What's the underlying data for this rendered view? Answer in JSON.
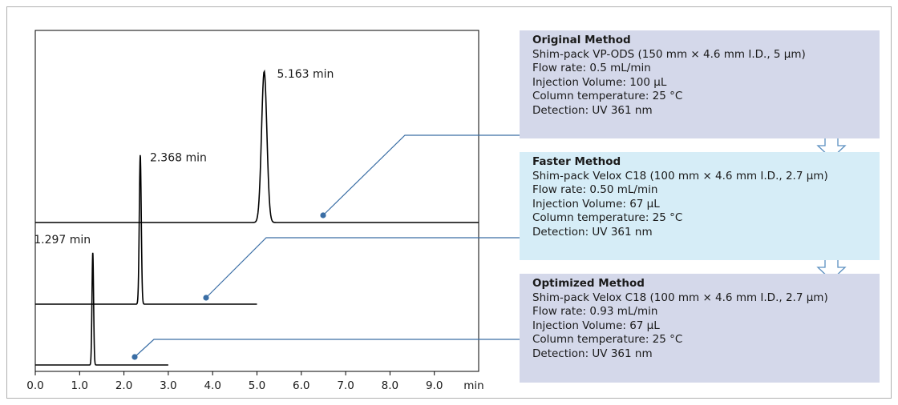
{
  "chart_data": {
    "type": "line",
    "xlabel": "min",
    "xlim": [
      0,
      10
    ],
    "xticks": [
      "0.0",
      "1.0",
      "2.0",
      "3.0",
      "4.0",
      "5.0",
      "6.0",
      "7.0",
      "8.0",
      "9.0"
    ],
    "series": [
      {
        "peak_label": "5.163 min",
        "peak_time": 5.163,
        "run_end": 10.0,
        "peak_height": 0.9,
        "peak_width": 0.06,
        "panel": "original"
      },
      {
        "peak_label": "2.368 min",
        "peak_time": 2.368,
        "run_end": 5.0,
        "peak_height": 0.88,
        "peak_width": 0.022,
        "panel": "faster"
      },
      {
        "peak_label": "1.297 min",
        "peak_time": 1.297,
        "run_end": 3.0,
        "peak_height": 0.85,
        "peak_width": 0.018,
        "panel": "optimized"
      }
    ]
  },
  "panels": {
    "original": {
      "title": "Original Method",
      "lines": [
        "Shim-pack VP-ODS (150 mm × 4.6 mm I.D., 5 µm)",
        "Flow rate: 0.5 mL/min",
        "Injection Volume: 100 µL",
        "Column temperature: 25 °C",
        "Detection: UV 361 nm"
      ]
    },
    "faster": {
      "title": "Faster Method",
      "lines": [
        "Shim-pack Velox C18 (100 mm × 4.6 mm I.D., 2.7 µm)",
        "Flow rate: 0.50 mL/min",
        "Injection Volume: 67 µL",
        "Column temperature: 25 °C",
        "Detection: UV 361 nm"
      ]
    },
    "optimized": {
      "title": "Optimized Method",
      "lines": [
        "Shim-pack Velox C18 (100 mm × 4.6 mm I.D., 2.7 µm)",
        "Flow rate: 0.93 mL/min",
        "Injection Volume: 67 µL",
        "Column temperature: 25 °C",
        "Detection: UV 361 nm"
      ]
    }
  },
  "colors": {
    "trace": "#000000",
    "callout": "#3a6ea5",
    "panel_original": "#d4d8ea",
    "panel_faster": "#d6edf7",
    "panel_optimized": "#d4d8ea",
    "arrow_stroke": "#5a8fc0"
  }
}
